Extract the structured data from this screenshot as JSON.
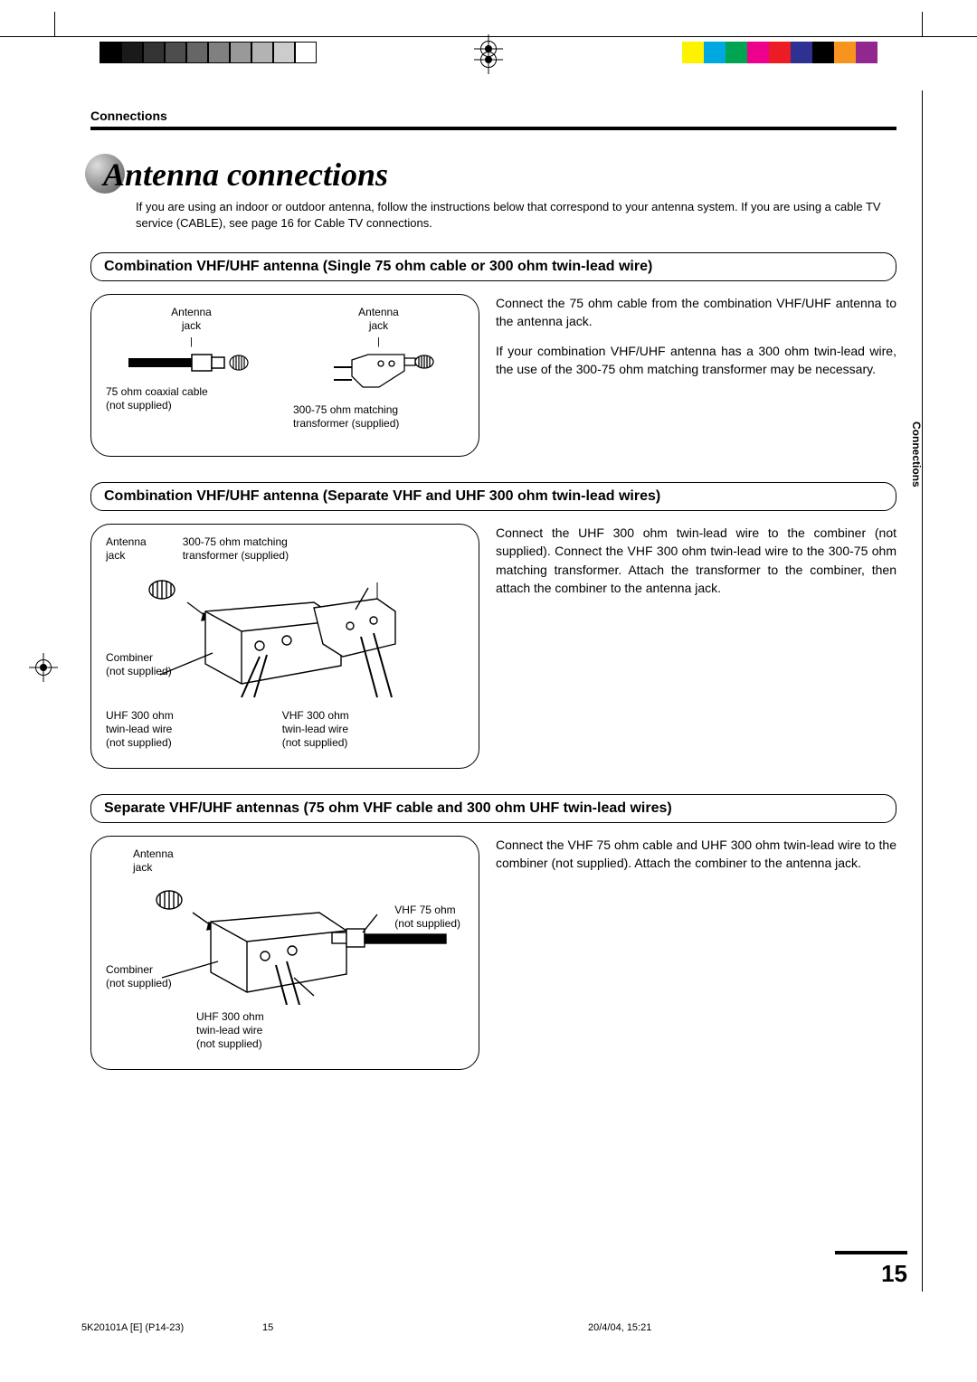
{
  "header": {
    "section_label": "Connections"
  },
  "title": "Antenna connections",
  "intro": "If you are using an indoor or outdoor antenna, follow the instructions below that correspond to your antenna system. If you are using a cable TV service (CABLE), see page 16 for Cable TV connections.",
  "side_tab": "Connections",
  "page_number": "15",
  "footer": {
    "doc_id": "5K20101A [E] (P14-23)",
    "page": "15",
    "timestamp": "20/4/04, 15:21"
  },
  "print_colors": {
    "left_bar": [
      "#000000",
      "#1a1a1a",
      "#333333",
      "#4d4d4d",
      "#666666",
      "#808080",
      "#999999",
      "#b3b3b3",
      "#cccccc",
      "#ffffff"
    ],
    "right_bar": [
      "#ffffff",
      "#fff200",
      "#00a8e1",
      "#00a551",
      "#ec008c",
      "#ed1c24",
      "#2e3192",
      "#000000",
      "#f7941d",
      "#92278f"
    ]
  },
  "sections": [
    {
      "heading": "Combination VHF/UHF antenna (Single 75 ohm cable or 300 ohm twin-lead wire)",
      "diagram": {
        "col1_label": "Antenna\njack",
        "col1_caption": "75 ohm coaxial cable\n(not supplied)",
        "col2_label": "Antenna\njack",
        "col2_caption": "300-75 ohm matching\ntransformer (supplied)"
      },
      "description": [
        "Connect the 75 ohm cable from the combination VHF/UHF antenna to the antenna jack.",
        "If your combination VHF/UHF antenna has a 300 ohm twin-lead wire, the use of the 300-75 ohm matching transformer may be necessary."
      ]
    },
    {
      "heading": "Combination VHF/UHF antenna (Separate VHF and UHF 300 ohm twin-lead wires)",
      "diagram": {
        "a_label": "Antenna\njack",
        "b_label": "300-75 ohm matching\ntransformer (supplied)",
        "c_label": "Combiner\n(not supplied)",
        "d_label": "UHF 300 ohm\ntwin-lead wire\n(not supplied)",
        "e_label": "VHF 300 ohm\ntwin-lead wire\n(not supplied)"
      },
      "description": [
        "Connect the UHF 300 ohm twin-lead wire to the combiner (not supplied). Connect the VHF 300 ohm twin-lead wire to the 300-75 ohm matching transformer. Attach the transformer to the combiner, then attach the combiner to the antenna jack."
      ]
    },
    {
      "heading": "Separate VHF/UHF antennas (75 ohm VHF cable and 300 ohm UHF twin-lead wires)",
      "diagram": {
        "a_label": "Antenna\njack",
        "b_label": "VHF 75 ohm\n(not supplied)",
        "c_label": "Combiner\n(not supplied)",
        "d_label": "UHF 300 ohm\ntwin-lead wire\n(not supplied)"
      },
      "description": [
        "Connect the VHF 75 ohm cable and UHF 300 ohm twin-lead wire to the combiner (not supplied). Attach the combiner to the antenna jack."
      ]
    }
  ]
}
